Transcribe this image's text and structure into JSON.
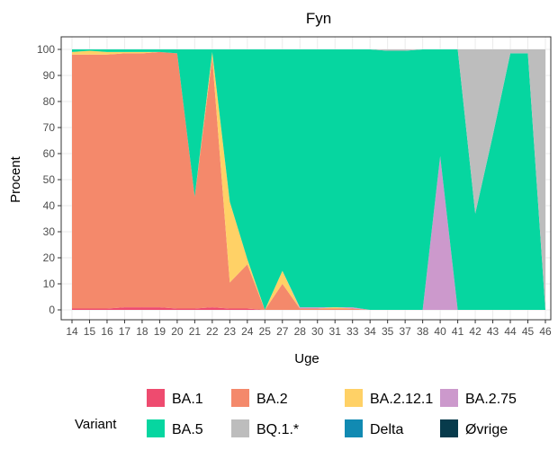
{
  "chart_data": {
    "type": "area",
    "title": "Fyn",
    "xlabel": "Uge",
    "ylabel": "Procent",
    "ylim": [
      0,
      100
    ],
    "yticks": [
      0,
      10,
      20,
      30,
      40,
      50,
      60,
      70,
      80,
      90,
      100
    ],
    "grid": true,
    "stacked": true,
    "x": [
      "14",
      "15",
      "16",
      "17",
      "18",
      "19",
      "20",
      "21",
      "22",
      "23",
      "24",
      "25",
      "27",
      "28",
      "30",
      "31",
      "33",
      "34",
      "35",
      "37",
      "38",
      "40",
      "41",
      "42",
      "43",
      "44",
      "45",
      "46"
    ],
    "legend_title": "Variant",
    "legend_position": "bottom",
    "series": [
      {
        "name": "BA.1",
        "color": "#EE4B6F",
        "values": [
          0.5,
          0.5,
          0.5,
          1,
          1,
          1,
          0.5,
          0.5,
          1,
          0.5,
          0.5,
          0,
          0,
          0,
          0,
          0,
          0,
          0,
          0,
          0,
          0,
          0,
          0,
          0,
          0,
          0,
          0,
          0
        ]
      },
      {
        "name": "BA.2",
        "color": "#F4896B",
        "values": [
          97.5,
          97.5,
          97.5,
          97.5,
          97.5,
          98,
          98,
          43,
          96,
          10,
          17,
          0,
          10,
          0.5,
          0.5,
          0.5,
          0.5,
          0,
          0,
          0,
          0,
          0,
          0,
          0,
          0,
          0,
          0,
          0
        ]
      },
      {
        "name": "BA.2.12.1",
        "color": "#FFD166",
        "values": [
          1,
          1.5,
          1,
          0.5,
          0.5,
          0,
          0,
          0,
          2,
          31,
          2,
          0,
          5,
          0,
          0,
          0.5,
          0,
          0,
          0,
          0,
          0,
          0,
          0,
          0,
          0,
          0,
          0,
          0
        ]
      },
      {
        "name": "BA.2.75",
        "color": "#CC99CC",
        "values": [
          0,
          0,
          0,
          0,
          0,
          0,
          0,
          0,
          0,
          0,
          0,
          0,
          0,
          0.5,
          0.5,
          0,
          0.5,
          0,
          0,
          0,
          0,
          59,
          0,
          0,
          0,
          0,
          0,
          0
        ]
      },
      {
        "name": "BA.5",
        "color": "#06D6A0",
        "values": [
          1,
          0.5,
          1,
          1,
          1,
          1,
          1.5,
          56.5,
          1,
          58.5,
          80.5,
          100,
          85,
          99,
          99,
          99,
          99,
          100,
          99.5,
          99.5,
          100,
          41,
          100,
          37,
          67,
          98.5,
          98.5,
          0
        ]
      },
      {
        "name": "BQ.1.*",
        "color": "#BDBDBD",
        "values": [
          0,
          0,
          0,
          0,
          0,
          0,
          0,
          0,
          0,
          0,
          0,
          0,
          0,
          0,
          0,
          0,
          0,
          0,
          0.5,
          0.5,
          0,
          0,
          0,
          63,
          33,
          1.5,
          1.5,
          100
        ]
      },
      {
        "name": "Delta",
        "color": "#118AB2",
        "values": [
          0,
          0,
          0,
          0,
          0,
          0,
          0,
          0,
          0,
          0,
          0,
          0,
          0,
          0,
          0,
          0,
          0,
          0,
          0,
          0,
          0,
          0,
          0,
          0,
          0,
          0,
          0,
          0
        ]
      },
      {
        "name": "Øvrige",
        "color": "#073B4C",
        "values": [
          0,
          0,
          0,
          0,
          0,
          0,
          0,
          0,
          0,
          0,
          0,
          0,
          0,
          0,
          0,
          0,
          0,
          0,
          0,
          0,
          0,
          0,
          0,
          0,
          0,
          0,
          0,
          0
        ]
      }
    ]
  }
}
